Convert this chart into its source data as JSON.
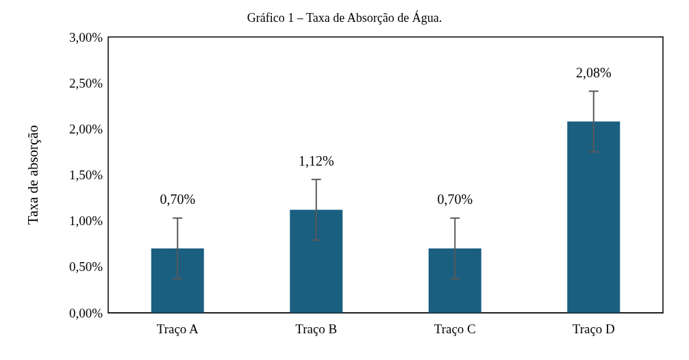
{
  "chart_data": {
    "type": "bar",
    "title": "Gráfico 1 – Taxa de Absorção de Água.",
    "ylabel": "Taxa de absorção",
    "categories": [
      "Traço A",
      "Traço B",
      "Traço C",
      "Traço D"
    ],
    "values": [
      0.7,
      1.12,
      0.7,
      2.08
    ],
    "value_labels": [
      "0,70%",
      "1,12%",
      "0,70%",
      "2,08%"
    ],
    "errors": [
      0.33,
      0.33,
      0.33,
      0.33
    ],
    "color": "#1a5e80",
    "ylim": [
      0,
      3
    ],
    "yticks": [
      {
        "value": 0,
        "label": "0,00%"
      },
      {
        "value": 0.5,
        "label": "0,50%"
      },
      {
        "value": 1,
        "label": "1,00%"
      },
      {
        "value": 1.5,
        "label": "1,50%"
      },
      {
        "value": 2,
        "label": "2,00%"
      },
      {
        "value": 2.5,
        "label": "2,50%"
      },
      {
        "value": 3,
        "label": "3,00%"
      }
    ],
    "grid": false
  }
}
